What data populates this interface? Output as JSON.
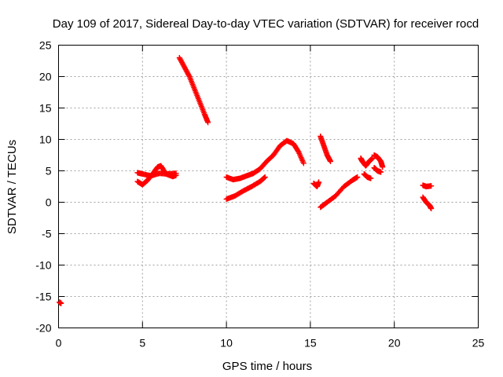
{
  "chart_data": {
    "type": "scatter",
    "title": "Day 109 of 2017, Sidereal Day-to-day VTEC variation (SDTVAR) for receiver rocd",
    "xlabel": "GPS time / hours",
    "ylabel": "SDTVAR / TECUs",
    "xlim": [
      0,
      25
    ],
    "ylim": [
      -20,
      25
    ],
    "xticks": [
      0,
      5,
      10,
      15,
      20,
      25
    ],
    "yticks": [
      -20,
      -15,
      -10,
      -5,
      0,
      5,
      10,
      15,
      20,
      25
    ],
    "grid": true,
    "marker": "+",
    "color": "#ff0000",
    "segments": [
      [
        [
          0.05,
          -15.9
        ],
        [
          0.15,
          -16.1
        ]
      ],
      [
        [
          7.2,
          23.0
        ],
        [
          7.5,
          21.5
        ],
        [
          7.8,
          20.0
        ],
        [
          8.1,
          18.0
        ],
        [
          8.4,
          16.0
        ],
        [
          8.7,
          14.0
        ],
        [
          8.9,
          12.7
        ]
      ],
      [
        [
          4.7,
          4.7
        ],
        [
          5.0,
          4.5
        ],
        [
          5.5,
          4.2
        ],
        [
          6.0,
          4.6
        ],
        [
          6.5,
          4.5
        ],
        [
          7.0,
          4.6
        ]
      ],
      [
        [
          4.7,
          3.3
        ],
        [
          5.0,
          2.8
        ],
        [
          5.3,
          3.5
        ],
        [
          5.6,
          4.5
        ],
        [
          5.9,
          5.6
        ],
        [
          6.1,
          5.8
        ],
        [
          6.4,
          4.5
        ],
        [
          6.8,
          4.1
        ],
        [
          7.0,
          4.3
        ]
      ],
      [
        [
          10.0,
          4.0
        ],
        [
          10.4,
          3.6
        ],
        [
          10.8,
          3.8
        ],
        [
          11.2,
          4.2
        ],
        [
          11.6,
          4.6
        ],
        [
          12.0,
          5.3
        ],
        [
          12.4,
          6.5
        ],
        [
          12.8,
          7.5
        ],
        [
          13.2,
          9.0
        ],
        [
          13.6,
          9.8
        ],
        [
          14.0,
          9.3
        ],
        [
          14.3,
          8.0
        ],
        [
          14.6,
          6.2
        ]
      ],
      [
        [
          10.0,
          0.5
        ],
        [
          10.5,
          1.0
        ],
        [
          11.0,
          1.8
        ],
        [
          11.5,
          2.5
        ],
        [
          12.0,
          3.3
        ],
        [
          12.3,
          4.0
        ]
      ],
      [
        [
          15.2,
          3.0
        ],
        [
          15.4,
          2.5
        ],
        [
          15.5,
          3.2
        ]
      ],
      [
        [
          15.6,
          10.5
        ],
        [
          15.8,
          9.0
        ],
        [
          16.0,
          7.5
        ],
        [
          16.2,
          6.5
        ]
      ],
      [
        [
          15.6,
          -0.8
        ],
        [
          16.0,
          0.0
        ],
        [
          16.5,
          1.0
        ],
        [
          17.0,
          2.5
        ],
        [
          17.5,
          3.5
        ],
        [
          17.8,
          4.0
        ]
      ],
      [
        [
          18.0,
          7.0
        ],
        [
          18.1,
          6.5
        ],
        [
          18.3,
          5.8
        ],
        [
          18.5,
          6.5
        ],
        [
          18.7,
          7.0
        ]
      ],
      [
        [
          18.2,
          4.5
        ],
        [
          18.4,
          4.0
        ],
        [
          18.6,
          3.8
        ]
      ],
      [
        [
          18.8,
          7.5
        ],
        [
          19.0,
          7.2
        ],
        [
          19.2,
          6.5
        ],
        [
          19.3,
          5.6
        ]
      ],
      [
        [
          18.8,
          5.5
        ],
        [
          19.0,
          5.0
        ],
        [
          19.2,
          4.8
        ]
      ],
      [
        [
          21.7,
          2.7
        ],
        [
          21.9,
          2.5
        ],
        [
          22.2,
          2.6
        ]
      ],
      [
        [
          21.7,
          0.8
        ],
        [
          21.9,
          0.0
        ],
        [
          22.1,
          -0.5
        ],
        [
          22.2,
          -1.0
        ]
      ]
    ]
  }
}
